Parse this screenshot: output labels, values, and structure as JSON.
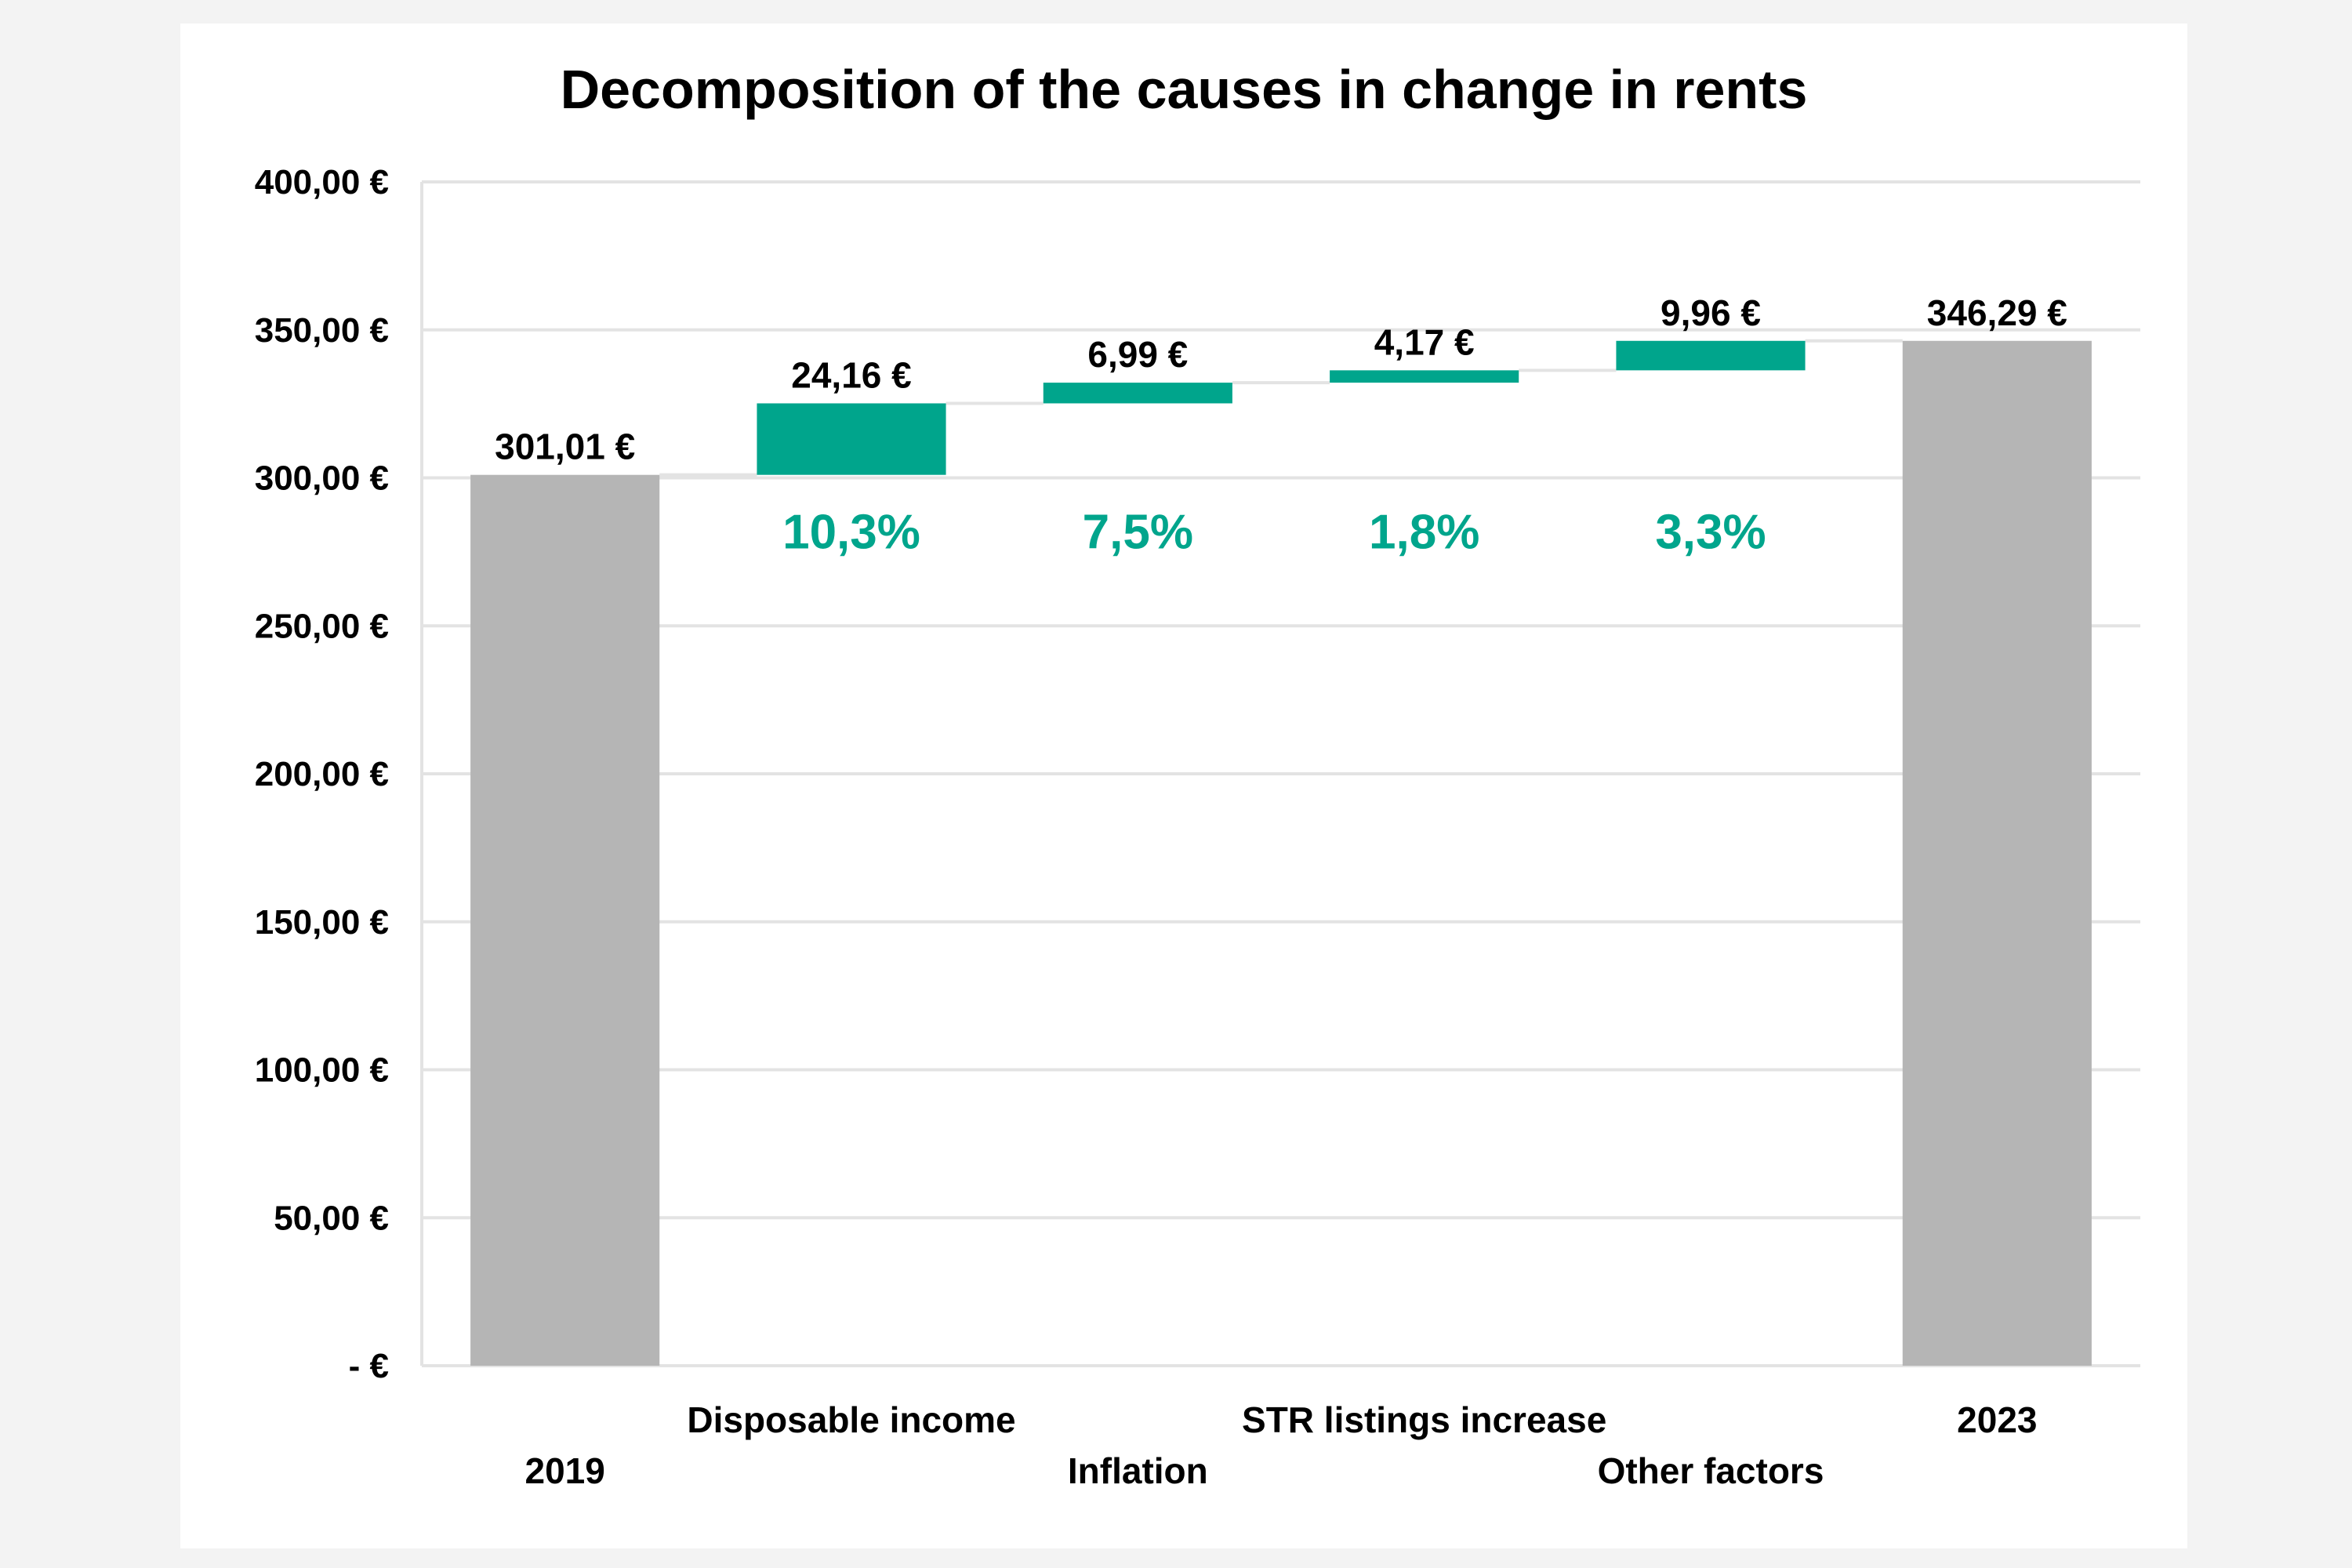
{
  "chart_data": {
    "type": "bar",
    "subtype": "waterfall",
    "title": "Decomposition of the causes in change in rents",
    "xlabel": "",
    "ylabel": "",
    "ylim": [
      0,
      400
    ],
    "grid": true,
    "y_ticks": [
      "-  €",
      "50,00 €",
      "100,00 €",
      "150,00 €",
      "200,00 €",
      "250,00 €",
      "300,00 €",
      "350,00 €",
      "400,00 €"
    ],
    "y_tick_values": [
      0,
      50,
      100,
      150,
      200,
      250,
      300,
      350,
      400
    ],
    "categories": [
      "2019",
      "Disposable income",
      "Inflation",
      "STR listings increase",
      "Other factors",
      "2023"
    ],
    "values": [
      301.01,
      24.16,
      6.99,
      4.17,
      9.96,
      346.29
    ],
    "measure": [
      "total",
      "relative",
      "relative",
      "relative",
      "relative",
      "total"
    ],
    "value_labels": [
      "301,01 €",
      "24,16 €",
      "6,99 €",
      "4,17 €",
      "9,96 €",
      "346,29 €"
    ],
    "percent_labels": [
      "",
      "10,3%",
      "7,5%",
      "1,8%",
      "3,3%",
      ""
    ],
    "colors": {
      "total": "#b5b5b5",
      "increase": "#00a58c",
      "percent_text": "#00a58c",
      "grid": "#e3e3e3",
      "text": "#000000"
    }
  }
}
